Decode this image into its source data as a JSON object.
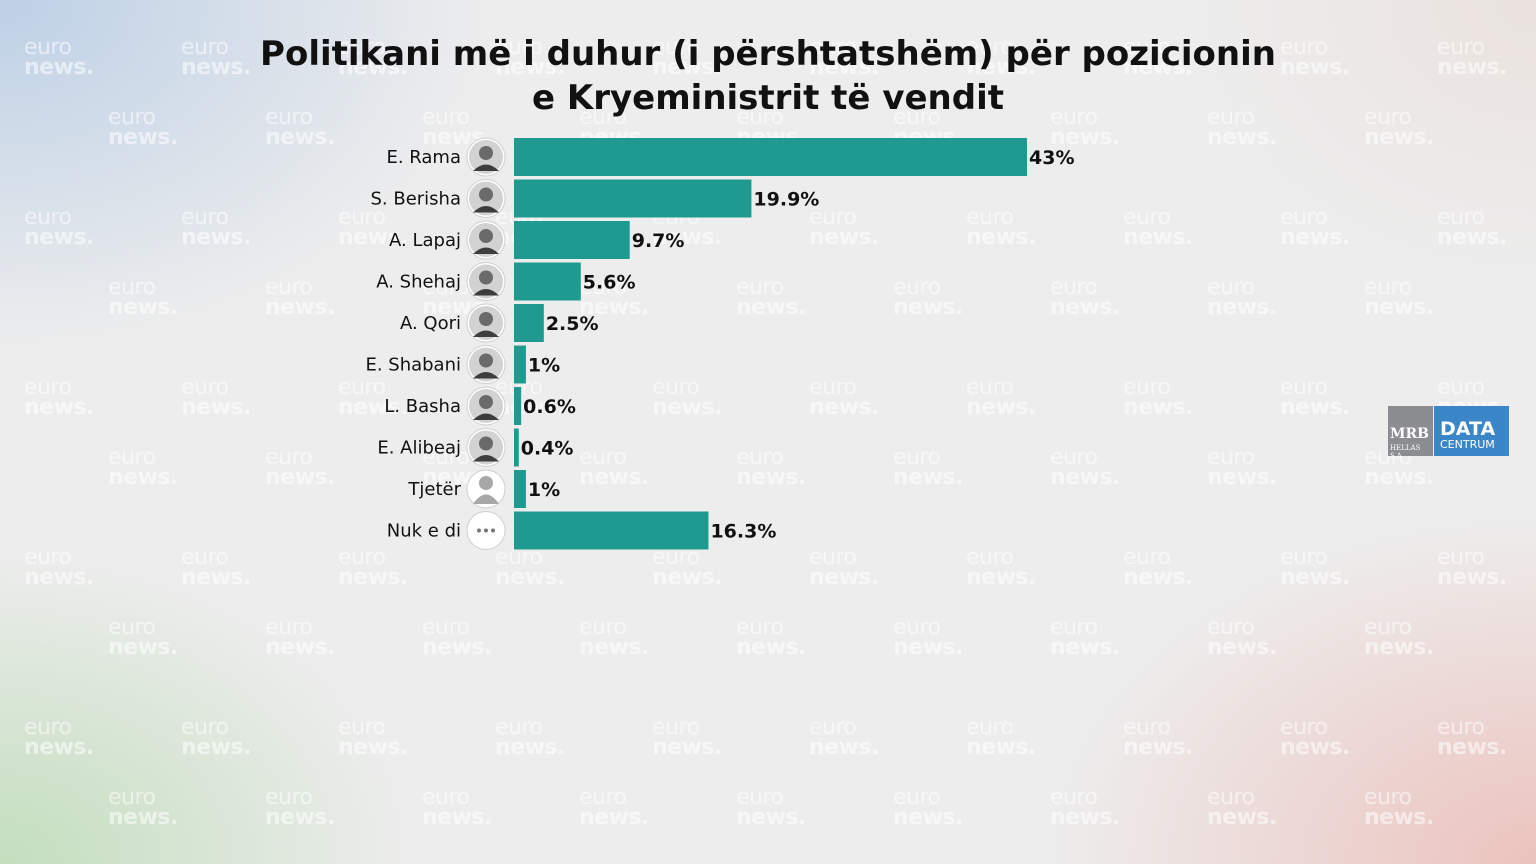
{
  "watermark": {
    "line1": "euro",
    "line2": "news."
  },
  "title": {
    "line1": "Politikani më i duhur (i përshtatshëm) për pozicionin",
    "line2": "e Kryeministrit të vendit"
  },
  "logo": {
    "mrb": "MRB",
    "mrb_sub": "HELLAS S.A.",
    "data": "DATA",
    "centrum": "CENTRUM"
  },
  "colors": {
    "bar": "#1f9a90",
    "text": "#111111"
  },
  "chart_data": {
    "type": "bar",
    "orientation": "horizontal",
    "categories": [
      "E. Rama",
      "S. Berisha",
      "A. Lapaj",
      "A. Shehaj",
      "A. Qori",
      "E. Shabani",
      "L. Basha",
      "E. Alibeaj",
      "Tjetër",
      "Nuk e di"
    ],
    "values": [
      43,
      19.9,
      9.7,
      5.6,
      2.5,
      1,
      0.6,
      0.4,
      1,
      16.3
    ],
    "value_labels": [
      "43%",
      "19.9%",
      "9.7%",
      "5.6%",
      "2.5%",
      "1%",
      "0.6%",
      "0.4%",
      "1%",
      "16.3%"
    ],
    "unit": "%",
    "avatar_icons": [
      "person-photo",
      "person-photo",
      "person-photo",
      "person-photo",
      "person-photo",
      "person-photo",
      "person-photo",
      "person-photo",
      "generic-person-icon",
      "ellipsis-icon"
    ],
    "xlim": [
      0,
      43
    ]
  }
}
